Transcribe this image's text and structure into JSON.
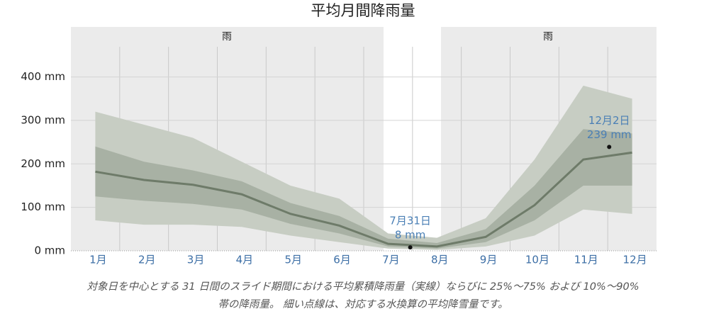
{
  "chart_data": {
    "type": "band-line",
    "title": "平均月間降雨量",
    "categories": [
      "1月",
      "2月",
      "3月",
      "4月",
      "5月",
      "6月",
      "7月",
      "8月",
      "9月",
      "10月",
      "11月",
      "12月"
    ],
    "values": [
      182,
      163,
      152,
      130,
      85,
      58,
      16,
      10,
      32,
      105,
      210,
      226
    ],
    "color": "#6e7b69",
    "bands": [
      {
        "color": "#c7cdc3",
        "low": [
          70,
          60,
          60,
          55,
          35,
          20,
          5,
          2,
          10,
          35,
          95,
          85
        ],
        "high": [
          320,
          290,
          260,
          205,
          150,
          120,
          40,
          30,
          75,
          210,
          380,
          350
        ]
      },
      {
        "color": "#a8b1a4",
        "low": [
          125,
          115,
          108,
          95,
          62,
          40,
          10,
          5,
          20,
          70,
          150,
          150
        ],
        "high": [
          240,
          205,
          185,
          160,
          110,
          80,
          28,
          18,
          50,
          150,
          280,
          270
        ]
      }
    ],
    "ylim": [
      0,
      515
    ],
    "yticks": [
      {
        "value": 0,
        "label": "0 mm"
      },
      {
        "value": 100,
        "label": "100 mm"
      },
      {
        "value": 200,
        "label": "200 mm"
      },
      {
        "value": 300,
        "label": "300 mm"
      },
      {
        "value": 400,
        "label": "400 mm"
      }
    ],
    "grid": true,
    "seasons": [
      "雨",
      "雨"
    ],
    "annotations": [
      {
        "date": "7月31日",
        "value": 8,
        "value_label": "8 mm"
      },
      {
        "date": "12月2日",
        "value": 239,
        "value_label": "239 mm"
      }
    ],
    "caption": [
      "対象日を中心とする 31 日間のスライド期間における平均累積降雨量（実線）ならびに 25%～75% および 10%～90%",
      "帯の降雨量。 細い点線は、対応する水換算の平均降雪量です。"
    ]
  }
}
